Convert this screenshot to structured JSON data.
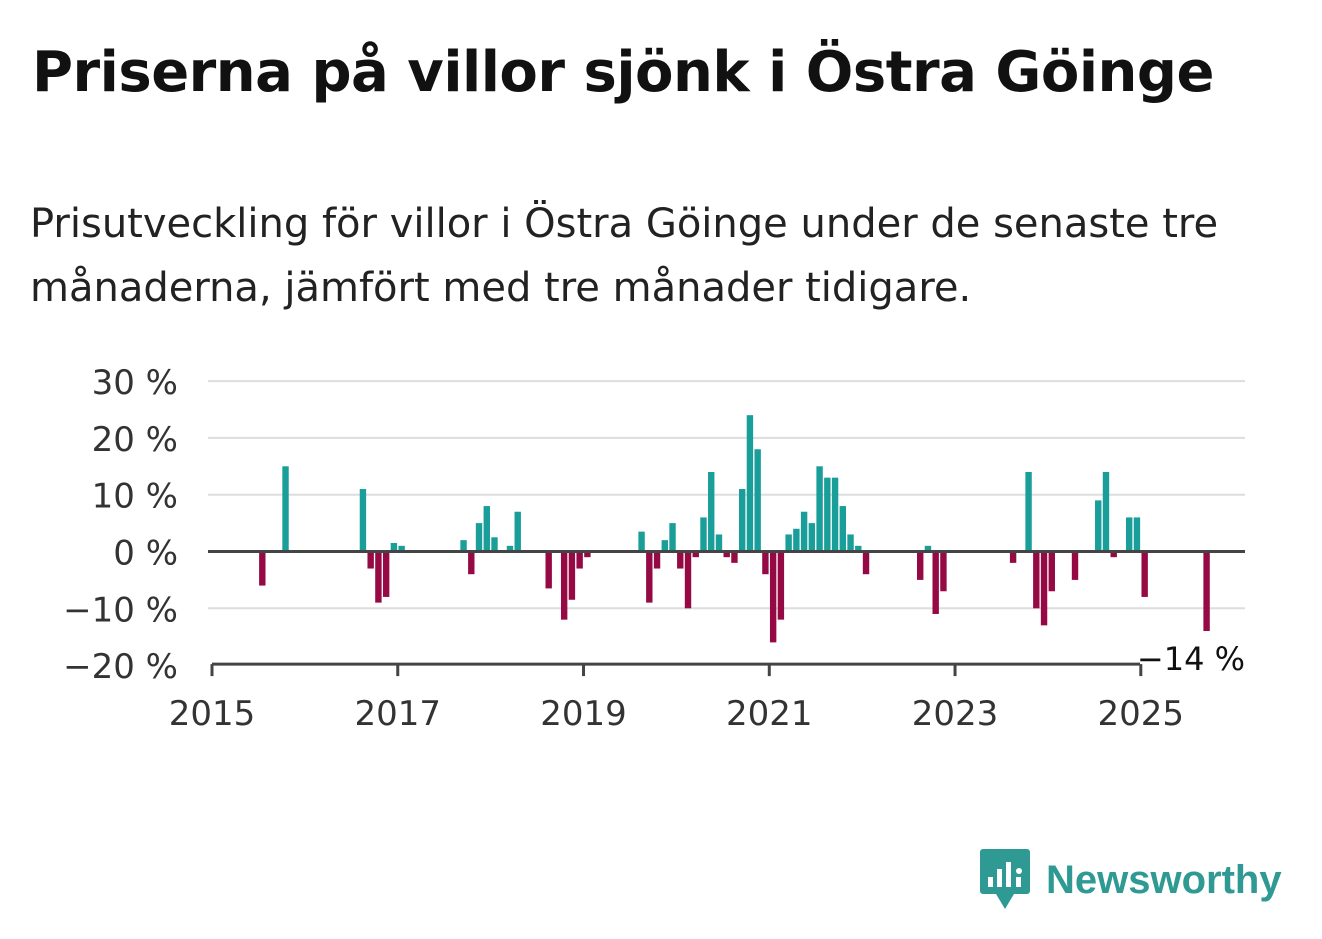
{
  "title": "Priserna på villor sjönk i Östra Göinge",
  "subtitle": "Prisutveckling för villor i Östra Göinge under de senaste tre månaderna, jämfört med tre månader tidigare.",
  "brand": "Newsworthy",
  "colors": {
    "positive": "#1a9e9a",
    "negative": "#950a45",
    "brand": "#2e9a93",
    "grid": "#dddddd",
    "axis": "#444444"
  },
  "chart_data": {
    "type": "bar",
    "unit": "%",
    "x_start": "2015-01",
    "x_ticks": [
      "2015",
      "2017",
      "2019",
      "2021",
      "2023",
      "2025"
    ],
    "y_ticks": [
      "30 %",
      "20 %",
      "10 %",
      "0 %",
      "−10 %",
      "−20 %"
    ],
    "y_tick_values": [
      30,
      20,
      10,
      0,
      -10,
      -20
    ],
    "ylim": [
      -20,
      30
    ],
    "grid": true,
    "last_value_label": "−14 %",
    "series": [
      {
        "values": [
          {
            "date": "2015-07",
            "value": -6
          },
          {
            "date": "2015-10",
            "value": 15
          },
          {
            "date": "2016-08",
            "value": 11
          },
          {
            "date": "2016-09",
            "value": -3
          },
          {
            "date": "2016-10",
            "value": -9
          },
          {
            "date": "2016-11",
            "value": -8
          },
          {
            "date": "2016-12",
            "value": 1.5
          },
          {
            "date": "2017-01",
            "value": 1
          },
          {
            "date": "2017-09",
            "value": 2
          },
          {
            "date": "2017-10",
            "value": -4
          },
          {
            "date": "2017-11",
            "value": 5
          },
          {
            "date": "2017-12",
            "value": 8
          },
          {
            "date": "2018-01",
            "value": 2.5
          },
          {
            "date": "2018-03",
            "value": 1
          },
          {
            "date": "2018-04",
            "value": 7
          },
          {
            "date": "2018-08",
            "value": -6.5
          },
          {
            "date": "2018-10",
            "value": -12
          },
          {
            "date": "2018-11",
            "value": -8.5
          },
          {
            "date": "2018-12",
            "value": -3
          },
          {
            "date": "2019-01",
            "value": -1
          },
          {
            "date": "2019-08",
            "value": 3.5
          },
          {
            "date": "2019-09",
            "value": -9
          },
          {
            "date": "2019-10",
            "value": -3
          },
          {
            "date": "2019-11",
            "value": 2
          },
          {
            "date": "2019-12",
            "value": 5
          },
          {
            "date": "2020-01",
            "value": -3
          },
          {
            "date": "2020-02",
            "value": -10
          },
          {
            "date": "2020-03",
            "value": -1
          },
          {
            "date": "2020-04",
            "value": 6
          },
          {
            "date": "2020-05",
            "value": 14
          },
          {
            "date": "2020-06",
            "value": 3
          },
          {
            "date": "2020-07",
            "value": -1
          },
          {
            "date": "2020-08",
            "value": -2
          },
          {
            "date": "2020-09",
            "value": 11
          },
          {
            "date": "2020-10",
            "value": 24
          },
          {
            "date": "2020-11",
            "value": 18
          },
          {
            "date": "2020-12",
            "value": -4
          },
          {
            "date": "2021-01",
            "value": -16
          },
          {
            "date": "2021-02",
            "value": -12
          },
          {
            "date": "2021-03",
            "value": 3
          },
          {
            "date": "2021-04",
            "value": 4
          },
          {
            "date": "2021-05",
            "value": 7
          },
          {
            "date": "2021-06",
            "value": 5
          },
          {
            "date": "2021-07",
            "value": 15
          },
          {
            "date": "2021-08",
            "value": 13
          },
          {
            "date": "2021-09",
            "value": 13
          },
          {
            "date": "2021-10",
            "value": 8
          },
          {
            "date": "2021-11",
            "value": 3
          },
          {
            "date": "2021-12",
            "value": 1
          },
          {
            "date": "2022-01",
            "value": -4
          },
          {
            "date": "2022-08",
            "value": -5
          },
          {
            "date": "2022-09",
            "value": 1
          },
          {
            "date": "2022-10",
            "value": -11
          },
          {
            "date": "2022-11",
            "value": -7
          },
          {
            "date": "2023-08",
            "value": -2
          },
          {
            "date": "2023-10",
            "value": 14
          },
          {
            "date": "2023-11",
            "value": -10
          },
          {
            "date": "2023-12",
            "value": -13
          },
          {
            "date": "2024-01",
            "value": -7
          },
          {
            "date": "2024-04",
            "value": -5
          },
          {
            "date": "2024-07",
            "value": 9
          },
          {
            "date": "2024-08",
            "value": 14
          },
          {
            "date": "2024-09",
            "value": -1
          },
          {
            "date": "2024-11",
            "value": 6
          },
          {
            "date": "2024-12",
            "value": 6
          },
          {
            "date": "2025-01",
            "value": -8
          },
          {
            "date": "2025-09",
            "value": -14
          }
        ]
      }
    ]
  }
}
